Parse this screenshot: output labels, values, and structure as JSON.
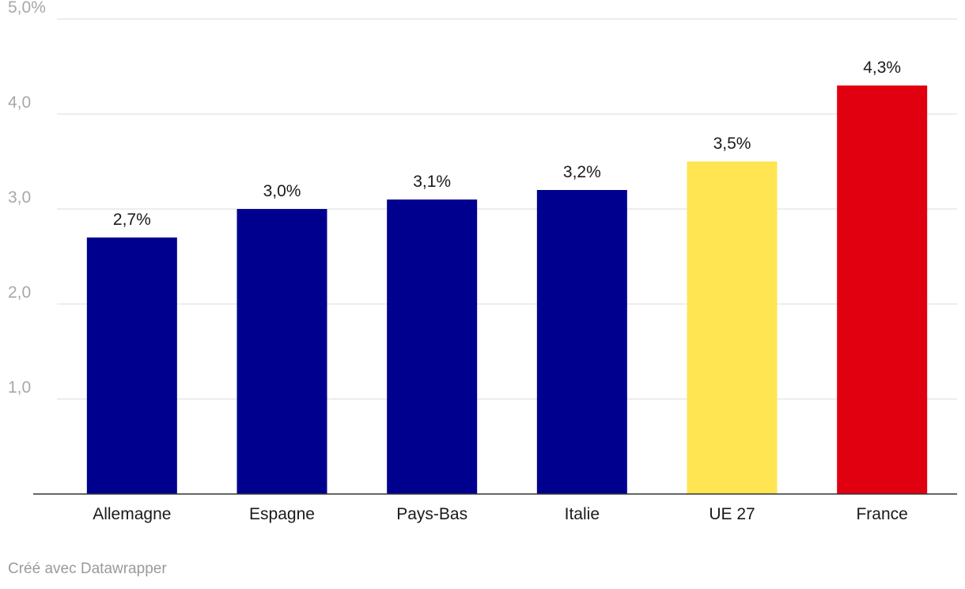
{
  "chart_data": {
    "type": "bar",
    "title": "",
    "xlabel": "",
    "ylabel": "",
    "ylim": [
      0,
      5
    ],
    "y_ticks": [
      {
        "value": 1,
        "label": "1,0"
      },
      {
        "value": 2,
        "label": "2,0"
      },
      {
        "value": 3,
        "label": "3,0"
      },
      {
        "value": 4,
        "label": "4,0"
      },
      {
        "value": 5,
        "label": "5,0%"
      }
    ],
    "grid": true,
    "categories": [
      "Allemagne",
      "Espagne",
      "Pays-Bas",
      "Italie",
      "UE 27",
      "France"
    ],
    "values": [
      2.7,
      3.0,
      3.1,
      3.2,
      3.5,
      4.3
    ],
    "value_labels": [
      "2,7%",
      "3,0%",
      "3,1%",
      "3,2%",
      "3,5%",
      "4,3%"
    ],
    "bar_colors": [
      "#00008f",
      "#00008f",
      "#00008f",
      "#00008f",
      "#ffe552",
      "#e1000f"
    ]
  },
  "credit": "Créé avec Datawrapper"
}
